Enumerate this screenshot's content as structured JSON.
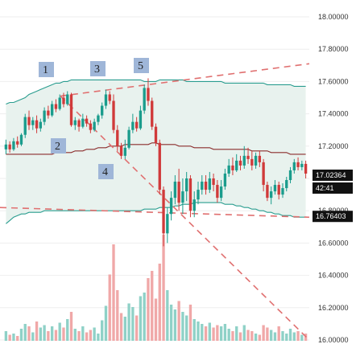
{
  "chart_data": {
    "type": "candlestick",
    "title": "",
    "ylim": [
      15.98,
      18.07
    ],
    "yticks": [
      16.0,
      16.2,
      16.4,
      16.6,
      16.8,
      17.0,
      17.2,
      17.4,
      17.6,
      17.8,
      18.0
    ],
    "ytick_labels": [
      "16.00000",
      "16.20000",
      "16.40000",
      "16.60000",
      "16.80000",
      "17.00000",
      "17.20000",
      "17.40000",
      "17.60000",
      "17.80000",
      "18.00000"
    ],
    "grid": true,
    "candles": [
      {
        "o": 17.18,
        "c": 17.21,
        "h": 17.24,
        "l": 17.15,
        "v": 0.08
      },
      {
        "o": 17.21,
        "c": 17.18,
        "h": 17.23,
        "l": 17.16,
        "v": 0.05
      },
      {
        "o": 17.18,
        "c": 17.23,
        "h": 17.25,
        "l": 17.17,
        "v": 0.06
      },
      {
        "o": 17.23,
        "c": 17.21,
        "h": 17.26,
        "l": 17.19,
        "v": 0.04
      },
      {
        "o": 17.21,
        "c": 17.27,
        "h": 17.28,
        "l": 17.2,
        "v": 0.1
      },
      {
        "o": 17.27,
        "c": 17.38,
        "h": 17.4,
        "l": 17.25,
        "v": 0.14
      },
      {
        "o": 17.38,
        "c": 17.33,
        "h": 17.42,
        "l": 17.3,
        "v": 0.12
      },
      {
        "o": 17.33,
        "c": 17.36,
        "h": 17.38,
        "l": 17.3,
        "v": 0.07
      },
      {
        "o": 17.36,
        "c": 17.31,
        "h": 17.39,
        "l": 17.28,
        "v": 0.16
      },
      {
        "o": 17.31,
        "c": 17.35,
        "h": 17.37,
        "l": 17.29,
        "v": 0.11
      },
      {
        "o": 17.35,
        "c": 17.42,
        "h": 17.44,
        "l": 17.33,
        "v": 0.13
      },
      {
        "o": 17.42,
        "c": 17.39,
        "h": 17.45,
        "l": 17.37,
        "v": 0.08
      },
      {
        "o": 17.39,
        "c": 17.46,
        "h": 17.48,
        "l": 17.38,
        "v": 0.12
      },
      {
        "o": 17.46,
        "c": 17.43,
        "h": 17.49,
        "l": 17.41,
        "v": 0.09
      },
      {
        "o": 17.43,
        "c": 17.5,
        "h": 17.52,
        "l": 17.42,
        "v": 0.15
      },
      {
        "o": 17.5,
        "c": 17.46,
        "h": 17.53,
        "l": 17.44,
        "v": 0.11
      },
      {
        "o": 17.46,
        "c": 17.52,
        "h": 17.54,
        "l": 17.45,
        "v": 0.18
      },
      {
        "o": 17.52,
        "c": 17.33,
        "h": 17.53,
        "l": 17.32,
        "v": 0.24
      },
      {
        "o": 17.33,
        "c": 17.36,
        "h": 17.38,
        "l": 17.3,
        "v": 0.1
      },
      {
        "o": 17.36,
        "c": 17.32,
        "h": 17.37,
        "l": 17.29,
        "v": 0.08
      },
      {
        "o": 17.32,
        "c": 17.37,
        "h": 17.4,
        "l": 17.31,
        "v": 0.12
      },
      {
        "o": 17.37,
        "c": 17.34,
        "h": 17.39,
        "l": 17.32,
        "v": 0.07
      },
      {
        "o": 17.34,
        "c": 17.3,
        "h": 17.36,
        "l": 17.28,
        "v": 0.09
      },
      {
        "o": 17.3,
        "c": 17.35,
        "h": 17.37,
        "l": 17.29,
        "v": 0.11
      },
      {
        "o": 17.35,
        "c": 17.39,
        "h": 17.4,
        "l": 17.33,
        "v": 0.06
      },
      {
        "o": 17.39,
        "c": 17.45,
        "h": 17.47,
        "l": 17.37,
        "v": 0.17
      },
      {
        "o": 17.45,
        "c": 17.52,
        "h": 17.55,
        "l": 17.43,
        "v": 0.29
      },
      {
        "o": 17.52,
        "c": 17.48,
        "h": 17.54,
        "l": 17.46,
        "v": 0.55
      },
      {
        "o": 17.48,
        "c": 17.3,
        "h": 17.52,
        "l": 17.28,
        "v": 0.8
      },
      {
        "o": 17.3,
        "c": 17.2,
        "h": 17.33,
        "l": 17.17,
        "v": 0.42
      },
      {
        "o": 17.2,
        "c": 17.14,
        "h": 17.22,
        "l": 17.12,
        "v": 0.23
      },
      {
        "o": 17.14,
        "c": 17.19,
        "h": 17.24,
        "l": 17.12,
        "v": 0.2
      },
      {
        "o": 17.19,
        "c": 17.3,
        "h": 17.32,
        "l": 17.18,
        "v": 0.31
      },
      {
        "o": 17.3,
        "c": 17.35,
        "h": 17.4,
        "l": 17.28,
        "v": 0.28
      },
      {
        "o": 17.35,
        "c": 17.31,
        "h": 17.38,
        "l": 17.29,
        "v": 0.21
      },
      {
        "o": 17.31,
        "c": 17.42,
        "h": 17.45,
        "l": 17.3,
        "v": 0.37
      },
      {
        "o": 17.42,
        "c": 17.56,
        "h": 17.58,
        "l": 17.4,
        "v": 0.4
      },
      {
        "o": 17.56,
        "c": 17.48,
        "h": 17.62,
        "l": 17.45,
        "v": 0.52
      },
      {
        "o": 17.48,
        "c": 17.32,
        "h": 17.5,
        "l": 17.3,
        "v": 0.58
      },
      {
        "o": 17.32,
        "c": 17.22,
        "h": 17.34,
        "l": 17.2,
        "v": 0.35
      },
      {
        "o": 17.22,
        "c": 16.93,
        "h": 17.24,
        "l": 16.9,
        "v": 0.64
      },
      {
        "o": 16.93,
        "c": 16.66,
        "h": 16.95,
        "l": 16.58,
        "v": 0.88
      },
      {
        "o": 16.66,
        "c": 16.78,
        "h": 16.82,
        "l": 16.6,
        "v": 0.42
      },
      {
        "o": 16.78,
        "c": 16.88,
        "h": 16.92,
        "l": 16.74,
        "v": 0.3
      },
      {
        "o": 16.88,
        "c": 16.98,
        "h": 17.02,
        "l": 16.84,
        "v": 0.26
      },
      {
        "o": 16.98,
        "c": 16.85,
        "h": 17.06,
        "l": 16.8,
        "v": 0.33
      },
      {
        "o": 16.85,
        "c": 16.92,
        "h": 17.0,
        "l": 16.78,
        "v": 0.24
      },
      {
        "o": 16.92,
        "c": 17.0,
        "h": 17.04,
        "l": 16.86,
        "v": 0.21
      },
      {
        "o": 17.0,
        "c": 16.8,
        "h": 17.02,
        "l": 16.76,
        "v": 0.3
      },
      {
        "o": 16.8,
        "c": 16.87,
        "h": 16.92,
        "l": 16.76,
        "v": 0.18
      },
      {
        "o": 16.87,
        "c": 16.93,
        "h": 16.98,
        "l": 16.84,
        "v": 0.16
      },
      {
        "o": 16.93,
        "c": 16.98,
        "h": 17.02,
        "l": 16.9,
        "v": 0.14
      },
      {
        "o": 16.98,
        "c": 16.93,
        "h": 17.02,
        "l": 16.9,
        "v": 0.12
      },
      {
        "o": 16.93,
        "c": 17.0,
        "h": 17.04,
        "l": 16.91,
        "v": 0.15
      },
      {
        "o": 17.0,
        "c": 16.96,
        "h": 17.03,
        "l": 16.92,
        "v": 0.11
      },
      {
        "o": 16.96,
        "c": 16.88,
        "h": 16.99,
        "l": 16.85,
        "v": 0.13
      },
      {
        "o": 16.88,
        "c": 16.95,
        "h": 16.99,
        "l": 16.86,
        "v": 0.12
      },
      {
        "o": 16.95,
        "c": 17.03,
        "h": 17.06,
        "l": 16.93,
        "v": 0.14
      },
      {
        "o": 17.03,
        "c": 17.08,
        "h": 17.12,
        "l": 17.01,
        "v": 0.1
      },
      {
        "o": 17.08,
        "c": 17.05,
        "h": 17.13,
        "l": 17.02,
        "v": 0.08
      },
      {
        "o": 17.05,
        "c": 17.11,
        "h": 17.15,
        "l": 17.04,
        "v": 0.12
      },
      {
        "o": 17.11,
        "c": 17.08,
        "h": 17.14,
        "l": 17.05,
        "v": 0.07
      },
      {
        "o": 17.08,
        "c": 17.14,
        "h": 17.2,
        "l": 17.06,
        "v": 0.13
      },
      {
        "o": 17.14,
        "c": 17.12,
        "h": 17.19,
        "l": 17.09,
        "v": 0.09
      },
      {
        "o": 17.12,
        "c": 17.08,
        "h": 17.17,
        "l": 17.05,
        "v": 0.08
      },
      {
        "o": 17.08,
        "c": 17.14,
        "h": 17.16,
        "l": 17.06,
        "v": 0.06
      },
      {
        "o": 17.14,
        "c": 17.1,
        "h": 17.17,
        "l": 17.07,
        "v": 0.05
      },
      {
        "o": 17.1,
        "c": 16.96,
        "h": 17.12,
        "l": 16.92,
        "v": 0.13
      },
      {
        "o": 16.96,
        "c": 16.88,
        "h": 16.98,
        "l": 16.86,
        "v": 0.11
      },
      {
        "o": 16.88,
        "c": 16.92,
        "h": 16.95,
        "l": 16.84,
        "v": 0.09
      },
      {
        "o": 16.92,
        "c": 16.96,
        "h": 16.99,
        "l": 16.9,
        "v": 0.07
      },
      {
        "o": 16.96,
        "c": 16.9,
        "h": 16.98,
        "l": 16.87,
        "v": 0.12
      },
      {
        "o": 16.9,
        "c": 16.94,
        "h": 16.97,
        "l": 16.88,
        "v": 0.08
      },
      {
        "o": 16.94,
        "c": 16.99,
        "h": 17.01,
        "l": 16.92,
        "v": 0.06
      },
      {
        "o": 16.99,
        "c": 17.05,
        "h": 17.07,
        "l": 16.97,
        "v": 0.1
      },
      {
        "o": 17.05,
        "c": 17.1,
        "h": 17.12,
        "l": 17.03,
        "v": 0.07
      },
      {
        "o": 17.1,
        "c": 17.07,
        "h": 17.13,
        "l": 17.05,
        "v": 0.08
      },
      {
        "o": 17.07,
        "c": 17.09,
        "h": 17.11,
        "l": 17.05,
        "v": 0.05
      },
      {
        "o": 17.09,
        "c": 17.03,
        "h": 17.11,
        "l": 17.0,
        "v": 0.06
      }
    ],
    "bollinger": {
      "upper": [
        17.46,
        17.47,
        17.47,
        17.48,
        17.49,
        17.5,
        17.52,
        17.53,
        17.54,
        17.55,
        17.56,
        17.57,
        17.58,
        17.59,
        17.59,
        17.6,
        17.6,
        17.61,
        17.61,
        17.61,
        17.61,
        17.61,
        17.61,
        17.61,
        17.61,
        17.61,
        17.61,
        17.61,
        17.61,
        17.61,
        17.61,
        17.61,
        17.61,
        17.61,
        17.61,
        17.61,
        17.6,
        17.6,
        17.6,
        17.6,
        17.61,
        17.61,
        17.61,
        17.61,
        17.61,
        17.61,
        17.61,
        17.6,
        17.6,
        17.6,
        17.6,
        17.6,
        17.6,
        17.6,
        17.6,
        17.6,
        17.6,
        17.59,
        17.59,
        17.59,
        17.59,
        17.59,
        17.59,
        17.59,
        17.59,
        17.59,
        17.59,
        17.59,
        17.58,
        17.58,
        17.58,
        17.58,
        17.58,
        17.58,
        17.58,
        17.57,
        17.57,
        17.57,
        17.57
      ],
      "middle": [
        17.15,
        17.15,
        17.15,
        17.15,
        17.15,
        17.15,
        17.15,
        17.15,
        17.15,
        17.15,
        17.15,
        17.15,
        17.15,
        17.16,
        17.16,
        17.16,
        17.16,
        17.16,
        17.17,
        17.17,
        17.17,
        17.18,
        17.18,
        17.18,
        17.19,
        17.19,
        17.19,
        17.2,
        17.2,
        17.2,
        17.2,
        17.21,
        17.21,
        17.21,
        17.21,
        17.21,
        17.21,
        17.21,
        17.22,
        17.22,
        17.21,
        17.21,
        17.21,
        17.21,
        17.21,
        17.2,
        17.2,
        17.2,
        17.2,
        17.19,
        17.19,
        17.19,
        17.19,
        17.19,
        17.18,
        17.18,
        17.18,
        17.18,
        17.18,
        17.18,
        17.18,
        17.18,
        17.18,
        17.18,
        17.17,
        17.17,
        17.17,
        17.17,
        17.17,
        17.16,
        17.16,
        17.16,
        17.16,
        17.16,
        17.15,
        17.15,
        17.15,
        17.15,
        17.15
      ],
      "lower": [
        16.72,
        16.74,
        16.76,
        16.77,
        16.78,
        16.78,
        16.79,
        16.79,
        16.79,
        16.79,
        16.8,
        16.8,
        16.8,
        16.8,
        16.8,
        16.8,
        16.8,
        16.8,
        16.8,
        16.8,
        16.8,
        16.8,
        16.8,
        16.8,
        16.8,
        16.8,
        16.8,
        16.8,
        16.8,
        16.8,
        16.8,
        16.8,
        16.8,
        16.8,
        16.8,
        16.8,
        16.81,
        16.81,
        16.81,
        16.81,
        16.82,
        16.82,
        16.82,
        16.82,
        16.83,
        16.83,
        16.84,
        16.84,
        16.84,
        16.85,
        16.85,
        16.85,
        16.85,
        16.85,
        16.85,
        16.85,
        16.85,
        16.84,
        16.84,
        16.84,
        16.83,
        16.83,
        16.82,
        16.82,
        16.81,
        16.81,
        16.8,
        16.8,
        16.79,
        16.79,
        16.78,
        16.78,
        16.77,
        16.77,
        16.77,
        16.76,
        16.76,
        16.76,
        16.76
      ]
    },
    "annotations": [
      "1",
      "2",
      "3",
      "4",
      "5"
    ],
    "price_tag": "17.02364",
    "countdown": "42:41",
    "level_tag": "16.76403",
    "colors": {
      "up": "#1a9c8c",
      "down": "#d03a3a",
      "vol_up": "#8fd1c7",
      "vol_down": "#f0a8a8",
      "band": "#2a9d8f",
      "mid": "#8b2c2c",
      "dash": "#e07070",
      "fill": "#e8f2ee",
      "grid": "#eeeeee",
      "label_box": "#9fb6d8"
    }
  }
}
